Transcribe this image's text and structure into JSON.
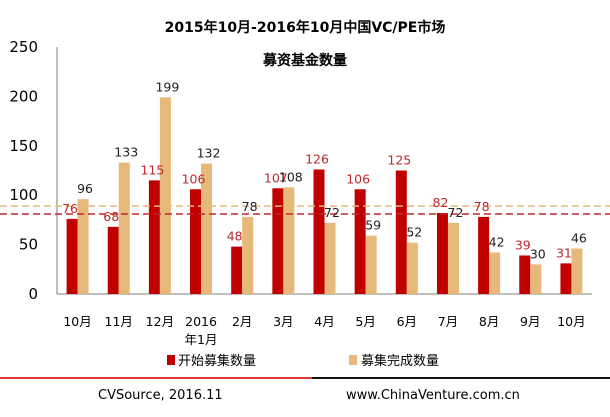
{
  "chart_data": {
    "type": "bar",
    "title": "2015年10月-2016年10月中国VC/PE市场",
    "subtitle": "募资基金数量",
    "categories": [
      [
        "10月"
      ],
      [
        "11月"
      ],
      [
        "12月"
      ],
      [
        "2016",
        "年1月"
      ],
      [
        "2月"
      ],
      [
        "3月"
      ],
      [
        "4月"
      ],
      [
        "5月"
      ],
      [
        "6月"
      ],
      [
        "7月"
      ],
      [
        "8月"
      ],
      [
        "9月"
      ],
      [
        "10月"
      ]
    ],
    "series": [
      {
        "name": "开始募集数量",
        "color": "#c00000",
        "values": [
          76,
          68,
          115,
          106,
          48,
          107,
          126,
          106,
          125,
          82,
          78,
          39,
          31
        ]
      },
      {
        "name": "募集完成数量",
        "color": "#e6b97a",
        "values": [
          96,
          133,
          199,
          132,
          78,
          108,
          72,
          59,
          52,
          72,
          42,
          30,
          46
        ]
      }
    ],
    "ylim": [
      0,
      250
    ],
    "yticks": [
      "0",
      "50",
      "100",
      "150",
      "200",
      "250"
    ],
    "reference_lines": [
      {
        "value": 89,
        "color": "#e6b97a",
        "style": "dashed"
      },
      {
        "value": 81,
        "color": "#c0282d",
        "style": "dashed"
      }
    ],
    "grid": false,
    "legend_position": "bottom"
  },
  "footer": {
    "source": "CVSource, 2016.11",
    "website": "www.ChinaVenture.com.cn"
  }
}
